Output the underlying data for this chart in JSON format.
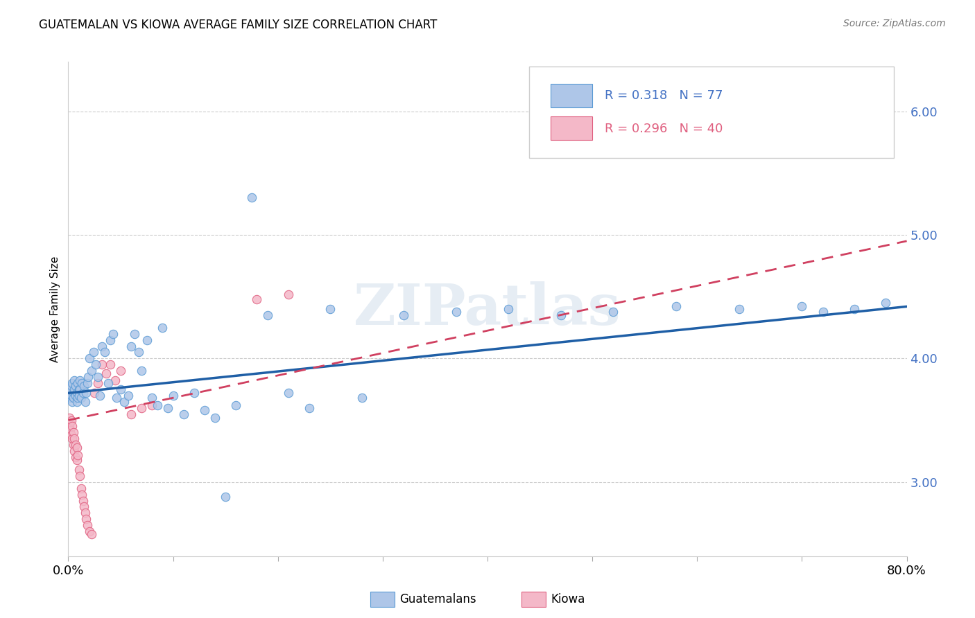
{
  "title": "GUATEMALAN VS KIOWA AVERAGE FAMILY SIZE CORRELATION CHART",
  "source": "Source: ZipAtlas.com",
  "ylabel": "Average Family Size",
  "yticks": [
    3.0,
    4.0,
    5.0,
    6.0
  ],
  "xlim": [
    0.0,
    0.8
  ],
  "ylim": [
    2.4,
    6.4
  ],
  "guatemalans_color": "#aec6e8",
  "guatemalans_edge": "#5b9bd5",
  "kiowa_color": "#f4b8c8",
  "kiowa_edge": "#e06080",
  "trend_blue": "#1f5fa6",
  "trend_pink": "#d04060",
  "legend_line1": "R = 0.318   N = 77",
  "legend_line2": "R = 0.296   N = 40",
  "watermark": "ZIPatlas",
  "bottom_label1": "Guatemalans",
  "bottom_label2": "Kiowa",
  "guatemalans_x": [
    0.001,
    0.002,
    0.002,
    0.003,
    0.003,
    0.004,
    0.004,
    0.005,
    0.005,
    0.006,
    0.006,
    0.007,
    0.007,
    0.008,
    0.008,
    0.009,
    0.009,
    0.01,
    0.01,
    0.011,
    0.011,
    0.012,
    0.013,
    0.014,
    0.015,
    0.016,
    0.017,
    0.018,
    0.019,
    0.02,
    0.022,
    0.024,
    0.026,
    0.028,
    0.03,
    0.032,
    0.035,
    0.038,
    0.04,
    0.043,
    0.046,
    0.05,
    0.053,
    0.057,
    0.06,
    0.063,
    0.067,
    0.07,
    0.075,
    0.08,
    0.085,
    0.09,
    0.095,
    0.1,
    0.11,
    0.12,
    0.13,
    0.14,
    0.15,
    0.16,
    0.175,
    0.19,
    0.21,
    0.23,
    0.25,
    0.28,
    0.32,
    0.37,
    0.42,
    0.47,
    0.52,
    0.58,
    0.64,
    0.7,
    0.72,
    0.75,
    0.78
  ],
  "guatemalans_y": [
    3.72,
    3.68,
    3.75,
    3.7,
    3.78,
    3.65,
    3.8,
    3.72,
    3.68,
    3.75,
    3.82,
    3.7,
    3.78,
    3.65,
    3.72,
    3.8,
    3.68,
    3.75,
    3.7,
    3.82,
    3.75,
    3.68,
    3.8,
    3.72,
    3.78,
    3.65,
    3.72,
    3.8,
    3.85,
    4.0,
    3.9,
    4.05,
    3.95,
    3.85,
    3.7,
    4.1,
    4.05,
    3.8,
    4.15,
    4.2,
    3.68,
    3.75,
    3.65,
    3.7,
    4.1,
    4.2,
    4.05,
    3.9,
    4.15,
    3.68,
    3.62,
    4.25,
    3.6,
    3.7,
    3.55,
    3.72,
    3.58,
    3.52,
    2.88,
    3.62,
    5.3,
    4.35,
    3.72,
    3.6,
    4.4,
    3.68,
    4.35,
    4.38,
    4.4,
    4.35,
    4.38,
    4.42,
    4.4,
    4.42,
    4.38,
    4.4,
    4.45
  ],
  "kiowa_x": [
    0.001,
    0.001,
    0.002,
    0.002,
    0.003,
    0.003,
    0.004,
    0.004,
    0.005,
    0.005,
    0.006,
    0.006,
    0.007,
    0.007,
    0.008,
    0.008,
    0.009,
    0.01,
    0.011,
    0.012,
    0.013,
    0.014,
    0.015,
    0.016,
    0.017,
    0.018,
    0.02,
    0.022,
    0.025,
    0.028,
    0.032,
    0.036,
    0.04,
    0.045,
    0.05,
    0.06,
    0.07,
    0.08,
    0.18,
    0.21
  ],
  "kiowa_y": [
    3.52,
    3.45,
    3.48,
    3.42,
    3.5,
    3.38,
    3.45,
    3.35,
    3.4,
    3.3,
    3.35,
    3.25,
    3.3,
    3.2,
    3.28,
    3.18,
    3.22,
    3.1,
    3.05,
    2.95,
    2.9,
    2.85,
    2.8,
    2.75,
    2.7,
    2.65,
    2.6,
    2.58,
    3.72,
    3.8,
    3.95,
    3.88,
    3.95,
    3.82,
    3.9,
    3.55,
    3.6,
    3.62,
    4.48,
    4.52
  ],
  "blue_line_x": [
    0.0,
    0.8
  ],
  "blue_line_y": [
    3.72,
    4.42
  ],
  "pink_line_x": [
    0.0,
    0.8
  ],
  "pink_line_y": [
    3.5,
    4.95
  ]
}
